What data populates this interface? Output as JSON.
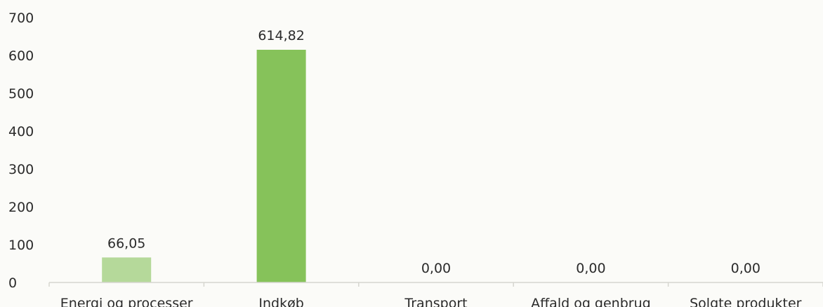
{
  "chart_data": {
    "type": "bar",
    "categories": [
      "Energi og processer",
      "Indkøb",
      "Transport",
      "Affald og genbrug",
      "Solgte produkter"
    ],
    "values": [
      66.05,
      614.82,
      0.0,
      0.0,
      0.0
    ],
    "data_labels": [
      "66,05",
      "614,82",
      "0,00",
      "0,00",
      "0,00"
    ],
    "bar_colors": [
      "#b5d99a",
      "#86c25a",
      "#86c25a",
      "#86c25a",
      "#86c25a"
    ],
    "ylim": [
      0,
      700
    ],
    "yticks": [
      0,
      100,
      200,
      300,
      400,
      500,
      600,
      700
    ],
    "ytick_labels": [
      "0",
      "100",
      "200",
      "300",
      "400",
      "500",
      "600",
      "700"
    ],
    "grid": false,
    "legend": "none"
  }
}
